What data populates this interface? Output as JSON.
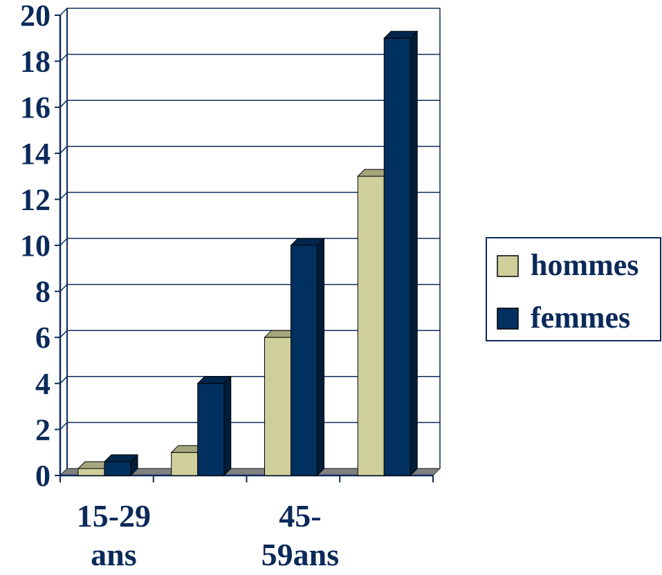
{
  "chart_data": {
    "type": "bar",
    "categories": [
      "15-29\nans",
      "",
      "45-\n59ans",
      ""
    ],
    "series": [
      {
        "name": "hommes",
        "values": [
          0.3,
          1,
          6,
          13
        ]
      },
      {
        "name": "femmes",
        "values": [
          0.6,
          4,
          10,
          19
        ]
      }
    ],
    "ylim": [
      0,
      20
    ],
    "yticks": [
      0,
      2,
      4,
      6,
      8,
      10,
      12,
      14,
      16,
      18,
      20
    ],
    "grid": true,
    "legend": "right",
    "colors": {
      "hommes": "#cfcf9c",
      "femmes": "#00305f",
      "axis": "#0b2a5a",
      "grid": "#0b2a5a",
      "floor": "#808080"
    }
  }
}
